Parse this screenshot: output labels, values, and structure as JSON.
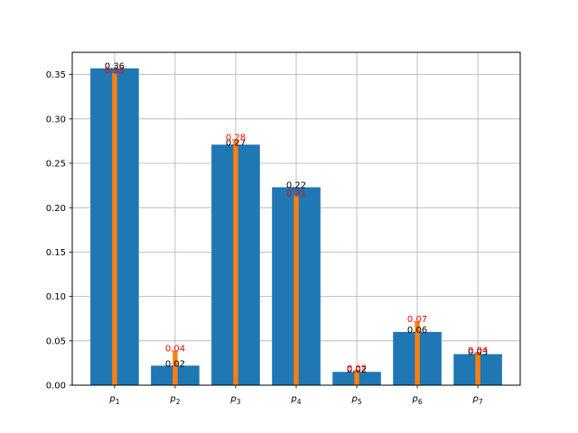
{
  "chart_data": {
    "type": "bar",
    "categories": [
      "p1",
      "p2",
      "p3",
      "p4",
      "p5",
      "p6",
      "p7"
    ],
    "category_labels": [
      {
        "base": "p",
        "sub": "1"
      },
      {
        "base": "p",
        "sub": "2"
      },
      {
        "base": "p",
        "sub": "3"
      },
      {
        "base": "p",
        "sub": "4"
      },
      {
        "base": "p",
        "sub": "5"
      },
      {
        "base": "p",
        "sub": "6"
      },
      {
        "base": "p",
        "sub": "7"
      }
    ],
    "series": [
      {
        "values": [
          0.357,
          0.022,
          0.271,
          0.223,
          0.015,
          0.06,
          0.035
        ],
        "labels": [
          "0.36",
          "0.02",
          "0.27",
          "0.22",
          "0.02",
          "0.06",
          "0.03"
        ],
        "color": "#1f77b4",
        "label_color": "#000000"
      },
      {
        "values": [
          0.352,
          0.039,
          0.277,
          0.214,
          0.017,
          0.072,
          0.037
        ],
        "labels": [
          "0.35",
          "0.04",
          "0.28",
          "0.21",
          "0.02",
          "0.07",
          "0.04"
        ],
        "color": "#ff7f0e",
        "label_color": "#ff0000"
      }
    ],
    "ylim": [
      0,
      0.375
    ],
    "yticks": [
      "0.00",
      "0.05",
      "0.10",
      "0.15",
      "0.20",
      "0.25",
      "0.30",
      "0.35"
    ],
    "grid": true,
    "title": "",
    "xlabel": "",
    "ylabel": ""
  }
}
